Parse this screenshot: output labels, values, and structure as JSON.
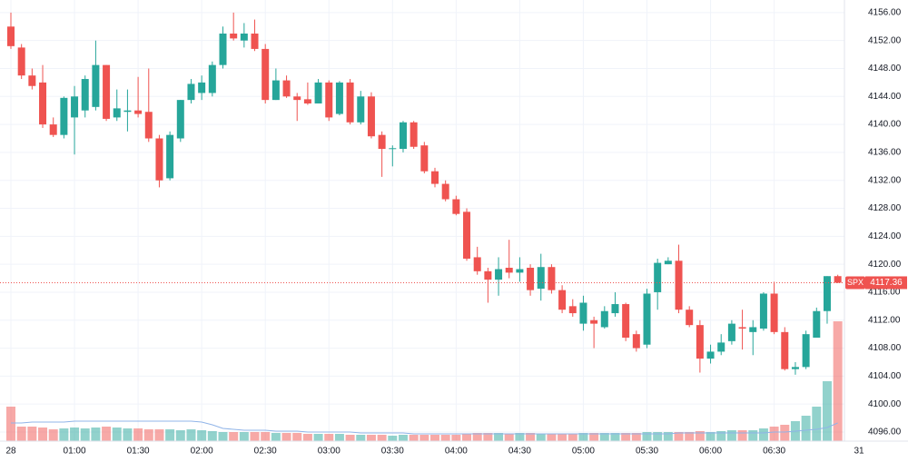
{
  "chart_data": {
    "type": "candlestick",
    "symbol": "SPX",
    "up_color": "#26a69a",
    "down_color": "#ef5350",
    "ma_color": "#90b4e8",
    "grid": true,
    "categories": [
      "28",
      null,
      null,
      null,
      null,
      null,
      "01:00",
      null,
      null,
      null,
      null,
      null,
      "01:30",
      null,
      null,
      null,
      null,
      null,
      "02:00",
      null,
      null,
      null,
      null,
      null,
      "02:30",
      null,
      null,
      null,
      null,
      null,
      "03:00",
      null,
      null,
      null,
      null,
      null,
      "03:30",
      null,
      null,
      null,
      null,
      null,
      "04:00",
      null,
      null,
      null,
      null,
      null,
      "04:30",
      null,
      null,
      null,
      null,
      null,
      "05:00",
      null,
      null,
      null,
      null,
      null,
      "05:30",
      null,
      null,
      null,
      null,
      null,
      "06:00",
      null,
      null,
      null,
      null,
      null,
      "06:30",
      null,
      null,
      null,
      null,
      null,
      null,
      null,
      "31"
    ],
    "open": [
      4154,
      4151,
      4147,
      4146,
      4140,
      4138.5,
      4141,
      4142,
      4142.5,
      4148.5,
      4141,
      4141.8,
      4142,
      4141.8,
      4138,
      4132.3,
      4138,
      4143.5,
      4144.5,
      4144.5,
      4148.5,
      4153,
      4152,
      4153,
      4150.8,
      4143.5,
      4146.3,
      4144,
      4143.6,
      4143,
      4146,
      4141.5,
      4146,
      4140.3,
      4144,
      4138.5,
      4136.5,
      4136.5,
      4140.3,
      4137,
      4133.3,
      4131.5,
      4129.3,
      4127.5,
      4121,
      4119,
      4117.8,
      4119.5,
      4118.8,
      4119.5,
      4116.5,
      4119.6,
      4116.3,
      4114,
      4111.5,
      4112,
      4111,
      4113,
      4114.3,
      4110,
      4108.5,
      4116,
      4120,
      4120.5,
      4113.5,
      4111.3,
      4106.5,
      4107.5,
      4109,
      4111,
      4110.3,
      4110.8,
      4115.8,
      4110.3,
      4105,
      4105.3,
      4109.5,
      4113.3,
      4118.3,
      null,
      null
    ],
    "high": [
      4156,
      4151.5,
      4148,
      4148.5,
      4141,
      4144,
      4145.5,
      4147,
      4152,
      4148.5,
      4145,
      4145,
      4146.8,
      4148,
      4138.5,
      4139,
      4143.5,
      4146.5,
      4147,
      4149,
      4154,
      4156,
      4154.5,
      4155,
      4151.5,
      4148,
      4147,
      4144.5,
      4146,
      4146.5,
      4146.3,
      4146.2,
      4146.5,
      4144.8,
      4144.6,
      4139,
      4137,
      4140.5,
      4140.5,
      4137.5,
      4133.8,
      4132,
      4129.8,
      4128,
      4122.5,
      4119.5,
      4121,
      4123.5,
      4121,
      4120,
      4121.5,
      4120,
      4117,
      4115,
      4115.5,
      4112.5,
      4114,
      4116,
      4114.5,
      4110.5,
      4116.5,
      4120.8,
      4121,
      4122.8,
      4114,
      4112,
      4108.5,
      4110,
      4112,
      4113.5,
      4112,
      4116,
      4117.5,
      4111,
      4106,
      4110.5,
      4113.8,
      4118.3,
      4118.5,
      null,
      null
    ],
    "low": [
      4150.8,
      4146.5,
      4145,
      4139.5,
      4138.2,
      4138,
      4135.7,
      4141,
      4142,
      4140.5,
      4140.5,
      4139,
      4141,
      4137.5,
      4131,
      4132,
      4137.5,
      4143,
      4143.5,
      4144,
      4148,
      4152,
      4151,
      4150.5,
      4143,
      4143.5,
      4143.8,
      4140.5,
      4142.8,
      4143,
      4140.5,
      4141.3,
      4140,
      4140,
      4138,
      4132.5,
      4134,
      4136,
      4136.5,
      4133,
      4131,
      4129,
      4127,
      4120.5,
      4118.5,
      4114.5,
      4115.5,
      4118,
      4117.5,
      4115.5,
      4114.8,
      4115.8,
      4113,
      4112.5,
      4110.5,
      4108,
      4110.8,
      4112.5,
      4109,
      4107.5,
      4108,
      4113.5,
      4120,
      4113,
      4111,
      4104.5,
      4105.8,
      4107,
      4108.5,
      4107.8,
      4107,
      4110.5,
      4110,
      4104.8,
      4104.2,
      4105,
      4109.5,
      4111.5,
      4117.3,
      null,
      null
    ],
    "close": [
      4151.2,
      4147,
      4145.5,
      4140,
      4138.5,
      4143.8,
      4144,
      4146.5,
      4148.5,
      4140.8,
      4142.3,
      4142,
      4141.5,
      4138,
      4132,
      4138.5,
      4143.5,
      4145.8,
      4146,
      4148.5,
      4153,
      4152.3,
      4153,
      4150.8,
      4143.5,
      4146.3,
      4144,
      4143.5,
      4143,
      4146,
      4141,
      4146,
      4140.3,
      4144,
      4138.3,
      4136.5,
      4136.6,
      4140.3,
      4136.8,
      4133.3,
      4131.5,
      4129.3,
      4127.2,
      4120.8,
      4119,
      4117.8,
      4119.3,
      4118.8,
      4119.3,
      4116.3,
      4119.6,
      4116.3,
      4113.5,
      4113,
      4114.5,
      4111.5,
      4113.3,
      4114.3,
      4109.5,
      4108,
      4115.8,
      4120.2,
      4120.5,
      4113.5,
      4111.3,
      4106.5,
      4107.5,
      4108.8,
      4111.5,
      4110.8,
      4111,
      4115.8,
      4110.3,
      4105,
      4105.3,
      4110,
      4113.3,
      4118.3,
      4117.36,
      null,
      null
    ],
    "volume": [
      38,
      16,
      16,
      15,
      13,
      14,
      15,
      14,
      15,
      16,
      15,
      14,
      14,
      13,
      13,
      13,
      12,
      13,
      12,
      11,
      10,
      10,
      10,
      10,
      10,
      9,
      9,
      9,
      8,
      8,
      8,
      8,
      7,
      7,
      7,
      7,
      6,
      7,
      7,
      7,
      7,
      7,
      7,
      8,
      9,
      9,
      9,
      8,
      9,
      9,
      8,
      8,
      8,
      8,
      9,
      9,
      9,
      9,
      9,
      9,
      10,
      10,
      10,
      10,
      10,
      11,
      10,
      11,
      12,
      12,
      12,
      14,
      16,
      18,
      22,
      28,
      38,
      66,
      132,
      null,
      null
    ],
    "volume_ma": [
      20,
      20,
      21,
      21,
      21,
      21,
      22,
      22,
      22,
      22,
      22,
      22,
      22,
      22,
      22,
      22,
      22,
      22,
      21,
      18,
      14,
      13,
      12,
      12,
      12,
      11,
      11,
      11,
      10,
      10,
      10,
      10,
      10,
      9,
      9,
      9,
      9,
      9,
      8,
      8,
      8,
      8,
      8,
      8,
      8,
      8,
      8,
      8,
      8,
      8,
      8,
      8,
      8,
      8,
      8,
      8,
      8,
      8,
      8,
      8,
      8,
      8,
      8,
      9,
      9,
      9,
      9,
      9,
      9,
      9,
      9,
      9,
      10,
      10,
      11,
      12,
      13,
      15,
      20,
      null,
      null
    ],
    "ylim": [
      4094.7,
      4157.8
    ],
    "yticks": [
      {
        "value": 4096,
        "label": "4096.00"
      },
      {
        "value": 4100,
        "label": "4100.00"
      },
      {
        "value": 4104,
        "label": "4104.00"
      },
      {
        "value": 4108,
        "label": "4108.00"
      },
      {
        "value": 4112,
        "label": "4112.00"
      },
      {
        "value": 4116,
        "label": "4116.00"
      },
      {
        "value": 4120,
        "label": "4120.00"
      },
      {
        "value": 4124,
        "label": "4124.00"
      },
      {
        "value": 4128,
        "label": "4128.00"
      },
      {
        "value": 4132,
        "label": "4132.00"
      },
      {
        "value": 4136,
        "label": "4136.00"
      },
      {
        "value": 4140,
        "label": "4140.00"
      },
      {
        "value": 4144,
        "label": "4144.00"
      },
      {
        "value": 4148,
        "label": "4148.00"
      },
      {
        "value": 4152,
        "label": "4152.00"
      },
      {
        "value": 4156,
        "label": "4156.00"
      }
    ],
    "last_price": 4117.36
  }
}
